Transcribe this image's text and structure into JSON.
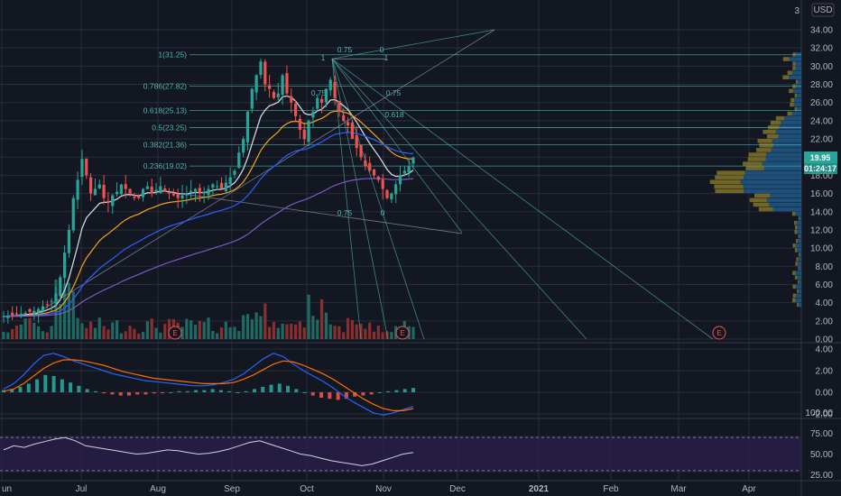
{
  "currency": "USD",
  "top_axis_label": "3",
  "price_badge": {
    "price": "19.95",
    "countdown": "01:24:17",
    "color": "#26a69a"
  },
  "earnings_marker": "E",
  "colors": {
    "background": "#131722",
    "grid": "#2a2e39",
    "up": "#26a69a",
    "down": "#ef5350",
    "ema_fast": "#d1d4dc",
    "ema_mid": "#f7a21b",
    "ema_slow": "#2962ff",
    "ema_200": "#7e57c2",
    "fib": "#4db6ac",
    "volume_up": "#1e6b63",
    "volume_down": "#8b2e2e",
    "profile_up": "#1e5a8a",
    "profile_down": "#8a7a2a",
    "macd": "#2962ff",
    "signal": "#ff6d00",
    "rsi": "#d1d4dc",
    "rsi_band": "#2a1f4a"
  },
  "chart_data": [
    {
      "type": "candlestick",
      "title": "",
      "x_axis_labels": [
        "un",
        "Jul",
        "Aug",
        "Sep",
        "Oct",
        "Nov",
        "Dec",
        "2021",
        "Feb",
        "Mar",
        "Apr"
      ],
      "y_ticks": [
        0.0,
        2.0,
        4.0,
        6.0,
        8.0,
        10.0,
        12.0,
        14.0,
        16.0,
        18.0,
        20.0,
        22.0,
        24.0,
        26.0,
        28.0,
        30.0,
        32.0,
        34.0
      ],
      "ylim": [
        0,
        36
      ],
      "last_price": 19.95,
      "fib_retracement_labels": [
        "1(31.25)",
        "0.786(27.82)",
        "0.618(25.13)",
        "0.5(23.25)",
        "0.382(21.36)",
        "0.236(19.02)"
      ],
      "fib_fan_labels": [
        "0.75",
        "0",
        "1",
        "1",
        "0.75",
        "0.75",
        "0.618",
        "0.75",
        "0"
      ],
      "ohlc_close_approx": [
        2.5,
        2.6,
        2.6,
        2.7,
        2.8,
        2.9,
        3.0,
        3.1,
        3.3,
        3.6,
        3.8,
        4.2,
        5.0,
        6.8,
        9.5,
        12.0,
        15.5,
        17.5,
        19.8,
        18.0,
        16.0,
        16.5,
        17.0,
        15.5,
        15.0,
        15.8,
        16.2,
        17.0,
        16.5,
        16.0,
        15.5,
        15.5,
        16.5,
        16.8,
        16.0,
        16.4,
        16.8,
        16.2,
        16.0,
        15.8,
        15.5,
        15.8,
        16.0,
        16.3,
        16.5,
        16.0,
        16.2,
        16.5,
        17.0,
        16.8,
        16.5,
        17.2,
        17.8,
        18.5,
        20.5,
        22.0,
        25.0,
        27.5,
        29.0,
        30.5,
        28.0,
        27.5,
        26.5,
        27.0,
        29.0,
        27.0,
        26.0,
        24.5,
        23.0,
        22.0,
        24.0,
        25.0,
        26.5,
        26.0,
        27.5,
        28.5,
        26.5,
        25.0,
        24.0,
        23.5,
        22.0,
        21.0,
        20.0,
        19.0,
        18.5,
        18.0,
        17.5,
        16.5,
        15.5,
        16.0,
        17.0,
        18.0,
        18.5,
        19.0,
        19.95
      ],
      "moving_average_labels": []
    },
    {
      "type": "bar",
      "title": "",
      "y_ticks": [
        -2.0,
        0.0,
        2.0,
        4.0
      ],
      "ylim": [
        -2.6,
        4.6
      ],
      "macd_hist_approx": [
        0.2,
        0.3,
        0.5,
        0.8,
        1.2,
        1.6,
        1.5,
        1.2,
        0.9,
        0.6,
        0.3,
        0.1,
        -0.1,
        -0.2,
        -0.3,
        -0.3,
        -0.2,
        -0.2,
        -0.1,
        -0.1,
        0.0,
        0.1,
        0.1,
        0.2,
        0.2,
        0.3,
        0.2,
        0.1,
        0.0,
        0.1,
        0.3,
        0.5,
        0.7,
        0.8,
        0.6,
        0.3,
        0.0,
        -0.3,
        -0.5,
        -0.6,
        -0.7,
        -0.6,
        -0.4,
        -0.3,
        -0.2,
        0.0,
        0.1,
        0.2,
        0.3,
        0.4
      ]
    },
    {
      "type": "line",
      "title": "",
      "y_ticks": [
        25.0,
        50.0,
        75.0,
        100.0
      ],
      "ylim": [
        20,
        105
      ],
      "rsi_band": [
        30,
        70
      ],
      "rsi_approx": [
        55,
        60,
        58,
        62,
        65,
        68,
        70,
        66,
        60,
        58,
        56,
        54,
        52,
        50,
        51,
        53,
        55,
        54,
        52,
        50,
        51,
        53,
        56,
        60,
        64,
        66,
        62,
        58,
        54,
        50,
        48,
        45,
        42,
        40,
        38,
        36,
        38,
        42,
        46,
        50,
        52
      ]
    }
  ]
}
